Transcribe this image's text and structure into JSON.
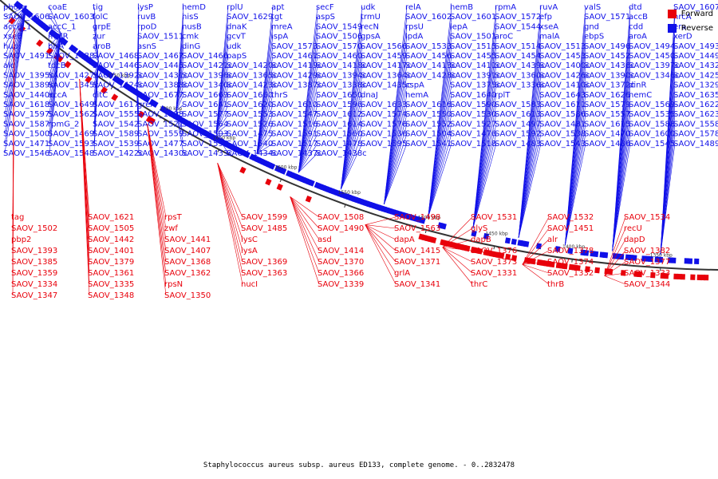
{
  "caption": "Staphylococcus aureus subsp. aureus ED133, complete genome. - 0..2832478",
  "legend": {
    "forward_label": "Forward",
    "reverse_label": "Reverse",
    "forward_color": "#e8000b",
    "reverse_color": "#1010e8"
  },
  "ticks": [
    "1750 kbp",
    "1700 kbp",
    "1650 kbp",
    "1600 kbp",
    "1550 kbp",
    "1500 kbp",
    "1450 kbp",
    "1400 kbp",
    "1350 kbp"
  ],
  "reverse_labels": [
    "phoR",
    "coaE",
    "tig",
    "lysP",
    "hemD",
    "rplU",
    "apt",
    "secF",
    "udk",
    "relA",
    "hemB",
    "rpmA",
    "ruvA",
    "valS",
    "dtd",
    "SAOV_1607",
    "SAOV_1606",
    "SAOV_1603",
    "folC",
    "ruvB",
    "hisS",
    "SAOV_1629",
    "tgt",
    "aspS",
    "trmU",
    "SAOV_1602",
    "SAOV_1601",
    "SAOV_1572",
    "efp",
    "SAOV_1571",
    "accB",
    "hrcA",
    "accB_1",
    "accC_1",
    "grpE",
    "rpoD",
    "nusB",
    "dnaK",
    "mreA",
    "SAOV_1549",
    "recN",
    "rpsU",
    "lepA",
    "SAOV_1544",
    "xseA",
    "gnd",
    "cdd",
    "era",
    "xseB",
    "malR",
    "zur",
    "SAOV_1511",
    "cmk",
    "gcvT",
    "ispA",
    "SAOV_1506",
    "gpsA",
    "lpdA",
    "SAOV_1501",
    "aroC",
    "malA",
    "ebpS",
    "aroA",
    "xerD",
    "hup",
    "birA",
    "aroB",
    "asnS",
    "dinG",
    "udk",
    "SAOV_1573",
    "SAOV_1570",
    "SAOV_1566",
    "SAOV_1533",
    "SAOV_1515",
    "SAOV_1514",
    "SAOV_1513",
    "SAOV_1496",
    "SAOV_1494",
    "SAOV_1493",
    "SAOV_1491",
    "SAOV_1488",
    "SAOV_1468",
    "SAOV_1467",
    "SAOV_1466",
    "papS",
    "SAOV_1461",
    "SAOV_1460",
    "SAOV_1459",
    "SAOV_1456",
    "SAOV_1455",
    "SAOV_1454",
    "SAOV_1453",
    "SAOV_1452",
    "SAOV_1450",
    "SAOV_1449",
    "ald",
    "tdcB",
    "SAOV_1446",
    "SAOV_1445",
    "SAOV_1421c",
    "SAOV_1420c",
    "SAOV_1419c",
    "SAOV_1418c",
    "SAOV_1417c",
    "SAOV_1413c",
    "SAOV_1411c",
    "SAOV_1439c",
    "SAOV_1400c",
    "SAOV_1436c",
    "SAOV_1397c",
    "SAOV_1432c",
    "SAOV_1395c",
    "SAOV_1427c",
    "SAOV_1392c",
    "SAOV_1431c",
    "SAOV_1396c",
    "SAOV_1365c",
    "SAOV_1429c",
    "SAOV_1394c",
    "SAOV_1364c",
    "SAOV_1428c",
    "SAOV_1391c",
    "SAOV_1360c",
    "SAOV_1426c",
    "SAOV_1390c",
    "SAOV_1346c",
    "SAOV_1425c",
    "SAOV_1389c",
    "SAOV_1345c",
    "SAOV_1424c",
    "SAOV_1388c",
    "SAOV_1340c",
    "SAOV_1423c",
    "SAOV_1387c",
    "SAOV_1338c",
    "SAOV_1435c",
    "cspA",
    "SAOV_1375c",
    "SAOV_1336c",
    "SAOV_1410c",
    "SAOV_1372c",
    "dinR",
    "SAOV_1329c",
    "SAOV_1440c",
    "accA",
    "citC",
    "SAOV_1677",
    "SAOV_1669",
    "SAOV_1660",
    "thrS",
    "SAOV_1650",
    "dnaJ",
    "hemA",
    "SAOV_1640",
    "rplT",
    "SAOV_1643",
    "SAOV_1626",
    "hemC",
    "SAOV_1635",
    "SAOV_1618",
    "SAOV_1649",
    "SAOV_1617",
    "greA",
    "SAOV_1641",
    "SAOV_1620",
    "SAOV_1610",
    "SAOV_1596",
    "SAOV_1633",
    "SAOV_1616",
    "SAOV_1590",
    "SAOV_1583",
    "SAOV_1611",
    "SAOV_1579",
    "SAOV_1569",
    "SAOV_1622",
    "SAOV_1597",
    "SAOV_1562",
    "SAOV_1555",
    "SAOV_1598",
    "SAOV_1577",
    "SAOV_1553",
    "SAOV_1547",
    "SAOV_1612",
    "SAOV_1574",
    "SAOV_1550",
    "SAOV_1530",
    "SAOV_1613",
    "SAOV_1586",
    "SAOV_1557",
    "SAOV_1535",
    "SAOV_1623",
    "SAOV_1587",
    "rpmG_2",
    "SAOV_1542",
    "SAOV_1521",
    "SAOV_1564",
    "SAOV_1526",
    "SAOV_1516",
    "SAOV_1614",
    "SAOV_1576",
    "SAOV_1552",
    "SAOV_1527",
    "SAOV_1497",
    "SAOV_1481",
    "SAOV_1615",
    "SAOV_1588",
    "SAOV_1558",
    "SAOV_1500",
    "SAOV_1469",
    "SAOV_1589",
    "SAOV_1559",
    "SAOV_1503",
    "SAOV_1475",
    "SAOV_1591",
    "SAOV_1560",
    "SAOV_1536",
    "SAOV_1504",
    "SAOV_1476",
    "SAOV_1592",
    "SAOV_1538",
    "SAOV_1470",
    "SAOV_1600",
    "SAOV_1578",
    "SAOV_1471",
    "SAOV_1593",
    "SAOV_1539",
    "SAOV_1477",
    "SAOV_1594",
    "SAOV_1540",
    "SAOV_1517",
    "SAOV_1478",
    "SAOV_1595",
    "SAOV_1541",
    "SAOV_1518",
    "SAOV_1483",
    "SAOV_1543",
    "SAOV_1486",
    "SAOV_1545",
    "SAOV_1489",
    "SAOV_1546",
    "SAOV_1548",
    "SAOV_1422c",
    "SAOV_1430c",
    "SAOV_1433c",
    "SAOV_1434c",
    "SAOV_1437c",
    "SAOV_1438c"
  ],
  "forward_labels": [
    "tag",
    "SAOV_1621",
    "rpsT",
    "SAOV_1599",
    "SAOV_1508",
    "SAOV_1498",
    "SAOV_1531",
    "SAOV_1532",
    "SAOV_1534",
    "SAOV_1502",
    "SAOV_1505",
    "zwf",
    "SAOV_1485",
    "SAOV_1490",
    "SAOV_1563",
    "glyS",
    "SAOV_1451",
    "recU",
    "pbp2",
    "SAOV_1442",
    "SAOV_1441",
    "lysC",
    "asd",
    "dapA",
    "dapB",
    "alr",
    "dapD",
    "SAOV_1393",
    "SAOV_1401",
    "SAOV_1407",
    "lysA",
    "SAOV_1414",
    "SAOV_1415",
    "SAOV_1376",
    "SAOV_1378",
    "SAOV_1382",
    "SAOV_1385",
    "SAOV_1379",
    "SAOV_1368",
    "SAOV_1369",
    "SAOV_1370",
    "SAOV_1371",
    "SAOV_1373",
    "SAOV_1374",
    "SAOV_1377",
    "SAOV_1359",
    "SAOV_1361",
    "SAOV_1362",
    "SAOV_1363",
    "SAOV_1366",
    "grlA",
    "SAOV_1331",
    "SAOV_1332",
    "SAOV_1333",
    "SAOV_1334",
    "SAOV_1335",
    "rpsN",
    "nucI",
    "SAOV_1339",
    "SAOV_1341",
    "thrC",
    "thrB",
    "SAOV_1344",
    "SAOV_1347",
    "SAOV_1348",
    "SAOV_1350"
  ]
}
